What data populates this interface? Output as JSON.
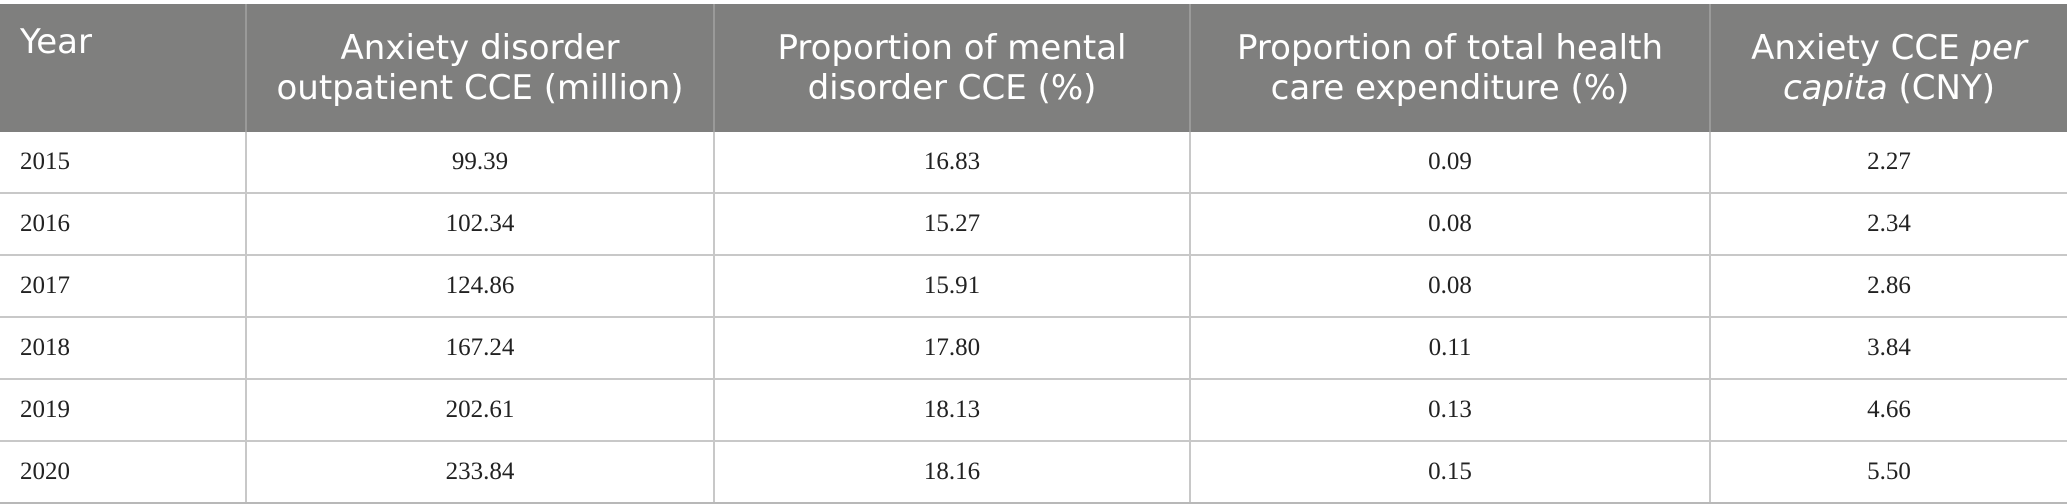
{
  "table": {
    "headers": {
      "year": "Year",
      "outpatient": "Anxiety disorder outpatient CCE (million)",
      "mental": "Proportion of mental disorder CCE (%)",
      "total": "Proportion of total health care expenditure (%)",
      "per_capita_a": "Anxiety CCE ",
      "per_capita_b": "per capita",
      "per_capita_c": " (CNY)"
    },
    "rows": [
      {
        "year": "2015",
        "outpatient": "99.39",
        "mental": "16.83",
        "total": "0.09",
        "per_capita": "2.27"
      },
      {
        "year": "2016",
        "outpatient": "102.34",
        "mental": "15.27",
        "total": "0.08",
        "per_capita": "2.34"
      },
      {
        "year": "2017",
        "outpatient": "124.86",
        "mental": "15.91",
        "total": "0.08",
        "per_capita": "2.86"
      },
      {
        "year": "2018",
        "outpatient": "167.24",
        "mental": "17.80",
        "total": "0.11",
        "per_capita": "3.84"
      },
      {
        "year": "2019",
        "outpatient": "202.61",
        "mental": "18.13",
        "total": "0.13",
        "per_capita": "4.66"
      },
      {
        "year": "2020",
        "outpatient": "233.84",
        "mental": "18.16",
        "total": "0.15",
        "per_capita": "5.50"
      }
    ]
  },
  "colors": {
    "header_bg": "#7f7f7e",
    "header_text": "#ffffff",
    "grid": "#c8c8c8"
  }
}
